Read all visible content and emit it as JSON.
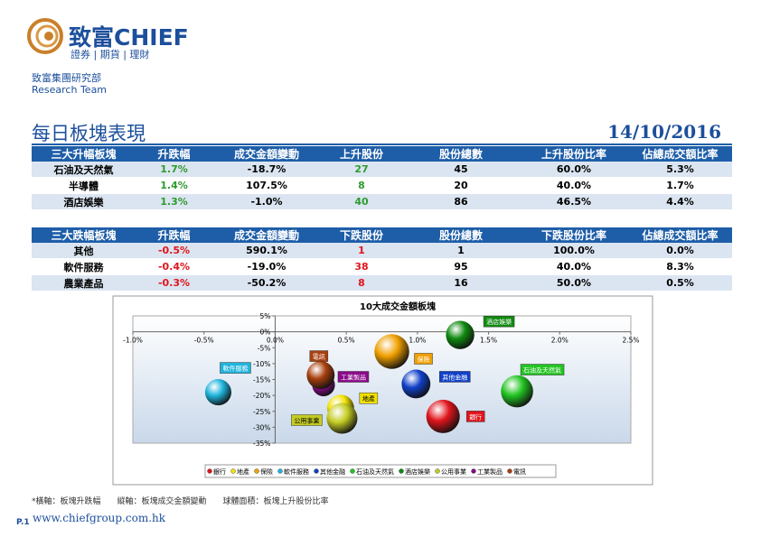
{
  "header": {
    "brand": "致富CHIEF",
    "tagline": "證券 | 期貨 | 理財",
    "department": "致富集團研究部",
    "team": "Research Team"
  },
  "title": "每日板塊表現",
  "date": "14/10/2016",
  "tables": [
    {
      "accent": "#2e9a2e",
      "columns": [
        "三大升幅板塊",
        "升跌幅",
        "成交金額變動",
        "上升股份",
        "股份總數",
        "上升股份比率",
        "佔總成交額比率"
      ],
      "rows": [
        [
          "石油及天然氣",
          "1.7%",
          "-18.7%",
          "27",
          "45",
          "60.0%",
          "5.3%"
        ],
        [
          "半導體",
          "1.4%",
          "107.5%",
          "8",
          "20",
          "40.0%",
          "1.7%"
        ],
        [
          "酒店娛樂",
          "1.3%",
          "-1.0%",
          "40",
          "86",
          "46.5%",
          "4.4%"
        ]
      ]
    },
    {
      "accent": "#e0141b",
      "columns": [
        "三大跌幅板塊",
        "升跌幅",
        "成交金額變動",
        "下跌股份",
        "股份總數",
        "下跌股份比率",
        "佔總成交額比率"
      ],
      "rows": [
        [
          "其他",
          "-0.5%",
          "590.1%",
          "1",
          "1",
          "100.0%",
          "0.0%"
        ],
        [
          "軟件服務",
          "-0.4%",
          "-19.0%",
          "38",
          "95",
          "40.0%",
          "8.3%"
        ],
        [
          "農業產品",
          "-0.3%",
          "-50.2%",
          "8",
          "16",
          "50.0%",
          "0.5%"
        ]
      ]
    }
  ],
  "chart_data": {
    "type": "bubble",
    "title": "10大成交金額板塊",
    "xlim": [
      -1.0,
      2.5
    ],
    "xticks": [
      {
        "value": -1.0,
        "label": "-1.0%"
      },
      {
        "value": -0.5,
        "label": "-0.5%"
      },
      {
        "value": 0,
        "label": "0.0%"
      },
      {
        "value": 0.5,
        "label": "0.5%"
      },
      {
        "value": 1.0,
        "label": "1.0%"
      },
      {
        "value": 1.5,
        "label": "1.5%"
      },
      {
        "value": 2.0,
        "label": "2.0%"
      },
      {
        "value": 2.5,
        "label": "2.5%"
      }
    ],
    "ylim": [
      -35,
      5
    ],
    "yticks": [
      {
        "value": 5,
        "label": "5%"
      },
      {
        "value": 0,
        "label": "0%"
      },
      {
        "value": -5,
        "label": "-5%"
      },
      {
        "value": -10,
        "label": "-10%"
      },
      {
        "value": -15,
        "label": "-15%"
      },
      {
        "value": -20,
        "label": "-20%"
      },
      {
        "value": -25,
        "label": "-25%"
      },
      {
        "value": -30,
        "label": "-30%"
      },
      {
        "value": -35,
        "label": "-35%"
      }
    ],
    "series": [
      {
        "name": "銀行",
        "color": "#e0141b",
        "x": [
          1.18
        ],
        "values": [
          -26.6
        ],
        "sizes": [
          65
        ]
      },
      {
        "name": "地產",
        "color": "#f2e200",
        "x": [
          0.46
        ],
        "values": [
          -24.0
        ],
        "sizes": [
          42
        ]
      },
      {
        "name": "保險",
        "color": "#f0a000",
        "x": [
          0.82
        ],
        "values": [
          -6.2
        ],
        "sizes": [
          70
        ]
      },
      {
        "name": "軟件服務",
        "color": "#1fb4dc",
        "x": [
          -0.4
        ],
        "values": [
          -19.0
        ],
        "sizes": [
          40
        ]
      },
      {
        "name": "其他金融",
        "color": "#1040c8",
        "x": [
          0.99
        ],
        "values": [
          -16.4
        ],
        "sizes": [
          48
        ]
      },
      {
        "name": "石油及天然氣",
        "color": "#22c422",
        "x": [
          1.7
        ],
        "values": [
          -18.7
        ],
        "sizes": [
          60
        ]
      },
      {
        "name": "酒店娛樂",
        "color": "#108a10",
        "x": [
          1.3
        ],
        "values": [
          -1.0
        ],
        "sizes": [
          46.5
        ]
      },
      {
        "name": "公用事業",
        "color": "#c4cc22",
        "x": [
          0.47
        ],
        "values": [
          -27.2
        ],
        "sizes": [
          55
        ]
      },
      {
        "name": "工業製品",
        "color": "#8a0a8a",
        "x": [
          0.34
        ],
        "values": [
          -16.7
        ],
        "sizes": [
          30
        ]
      },
      {
        "name": "電訊",
        "color": "#a8400e",
        "x": [
          0.32
        ],
        "values": [
          -13.6
        ],
        "sizes": [
          45
        ]
      }
    ]
  },
  "footnote": "*橫軸：板塊升跌幅　　縱軸：板塊成交金額變動　　球體面積：板塊上升股份比率",
  "footer": {
    "page": "P.1",
    "website": "www.chiefgroup.com.hk"
  }
}
